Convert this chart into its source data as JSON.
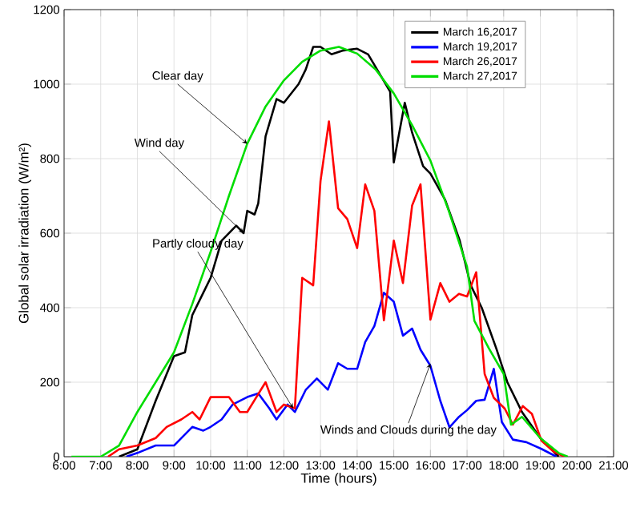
{
  "chart_data": {
    "type": "line",
    "xlabel": "Time (hours)",
    "ylabel": "Global solar irradiation  (W/m²)",
    "xlim": [
      6,
      21
    ],
    "xticks": [
      {
        "value": 6,
        "label": "6:00"
      },
      {
        "value": 7,
        "label": "7:00"
      },
      {
        "value": 8,
        "label": "8:00"
      },
      {
        "value": 9,
        "label": "9:00"
      },
      {
        "value": 10,
        "label": "10:00"
      },
      {
        "value": 11,
        "label": "11:00"
      },
      {
        "value": 12,
        "label": "12:00"
      },
      {
        "value": 13,
        "label": "13:00"
      },
      {
        "value": 14,
        "label": "14:00"
      },
      {
        "value": 15,
        "label": "15:00"
      },
      {
        "value": 16,
        "label": "16:00"
      },
      {
        "value": 17,
        "label": "17:00"
      },
      {
        "value": 18,
        "label": "18:00"
      },
      {
        "value": 19,
        "label": "19:00"
      },
      {
        "value": 20,
        "label": "20:00"
      },
      {
        "value": 21,
        "label": "21:00"
      }
    ],
    "ylim": [
      0,
      1200
    ],
    "yticks": [
      0,
      200,
      400,
      600,
      800,
      1000,
      1200
    ],
    "grid": true,
    "legend": "top right",
    "marker": "none",
    "line_style": "solid",
    "series": [
      {
        "name": "March 16,2017",
        "color": "#000000",
        "x": [
          7.5,
          8.0,
          8.5,
          9.0,
          9.3,
          9.5,
          9.8,
          10.0,
          10.3,
          10.7,
          10.9,
          11.0,
          11.2,
          11.3,
          11.5,
          11.8,
          12.0,
          12.4,
          12.6,
          12.8,
          13.0,
          13.3,
          13.6,
          14.0,
          14.3,
          14.6,
          14.9,
          15.0,
          15.3,
          15.5,
          15.8,
          16.0,
          16.4,
          16.8,
          17.1,
          17.4,
          17.8,
          18.1,
          18.5,
          19.0,
          19.5
        ],
        "values": [
          0,
          20,
          150,
          270,
          280,
          380,
          440,
          480,
          580,
          620,
          600,
          660,
          650,
          680,
          860,
          960,
          950,
          1000,
          1040,
          1100,
          1100,
          1080,
          1090,
          1095,
          1080,
          1030,
          980,
          790,
          950,
          870,
          780,
          760,
          690,
          580,
          460,
          400,
          290,
          200,
          120,
          50,
          0
        ]
      },
      {
        "name": "March 19,2017",
        "color": "#0000ff",
        "x": [
          7.7,
          8.0,
          8.5,
          9.0,
          9.5,
          9.8,
          10.0,
          10.3,
          10.6,
          11.0,
          11.3,
          11.6,
          11.8,
          12.1,
          12.3,
          12.6,
          12.9,
          13.2,
          13.48,
          13.73,
          14.0,
          14.22,
          14.47,
          14.73,
          15.0,
          15.25,
          15.5,
          15.73,
          16.0,
          16.27,
          16.52,
          16.78,
          17.0,
          17.25,
          17.48,
          17.73,
          17.95,
          18.25,
          18.62,
          19.03,
          19.44
        ],
        "values": [
          0,
          10,
          30,
          30,
          80,
          70,
          80,
          100,
          140,
          160,
          170,
          130,
          100,
          140,
          120,
          180,
          210,
          180,
          251,
          236,
          236,
          308,
          351,
          440,
          416,
          325,
          344,
          287,
          244,
          150,
          79,
          107,
          125,
          150,
          153,
          236,
          93,
          46,
          39,
          21,
          0
        ]
      },
      {
        "name": "March 26,2017",
        "color": "#ff0000",
        "x": [
          7.2,
          7.5,
          8.0,
          8.5,
          8.8,
          9.2,
          9.5,
          9.7,
          10.0,
          10.5,
          10.8,
          11.0,
          11.5,
          11.8,
          12.0,
          12.3,
          12.5,
          12.8,
          13.0,
          13.23,
          13.48,
          13.73,
          14.0,
          14.22,
          14.47,
          14.73,
          15.0,
          15.25,
          15.5,
          15.73,
          16.0,
          16.27,
          16.52,
          16.78,
          17.0,
          17.25,
          17.48,
          17.73,
          18.03,
          18.25,
          18.52,
          18.77,
          19.03,
          19.36,
          19.66
        ],
        "values": [
          0,
          20,
          30,
          50,
          80,
          100,
          120,
          100,
          160,
          160,
          120,
          120,
          200,
          120,
          140,
          130,
          480,
          460,
          740,
          900,
          667,
          638,
          560,
          731,
          660,
          366,
          580,
          466,
          674,
          731,
          368,
          466,
          416,
          437,
          430,
          495,
          222,
          158,
          129,
          86,
          136,
          115,
          43,
          14,
          0
        ]
      },
      {
        "name": "March 27,2017",
        "color": "#00dd00",
        "x": [
          6.2,
          7.0,
          7.5,
          8.0,
          8.5,
          9.0,
          9.5,
          10.0,
          10.5,
          11.0,
          11.5,
          12.0,
          12.5,
          13.0,
          13.5,
          14.0,
          14.5,
          15.0,
          15.5,
          16.0,
          16.5,
          17.0,
          17.2,
          17.6,
          18.0,
          18.2,
          18.5,
          19.0,
          19.5,
          19.75
        ],
        "values": [
          0,
          0,
          30,
          120,
          200,
          280,
          410,
          550,
          700,
          840,
          940,
          1010,
          1060,
          1090,
          1100,
          1082,
          1040,
          975,
          890,
          795,
          660,
          510,
          365,
          290,
          222,
          86,
          107,
          50,
          10,
          0
        ]
      }
    ],
    "annotations": [
      {
        "text": "Clear day",
        "x": 11.0,
        "y": 840
      },
      {
        "text": "Wind day",
        "x": 10.9,
        "y": 600
      },
      {
        "text": "Partly cloudy day",
        "x": 12.25,
        "y": 130
      },
      {
        "text": "Winds and Clouds during the day",
        "x": 16.0,
        "y": 250
      }
    ]
  }
}
